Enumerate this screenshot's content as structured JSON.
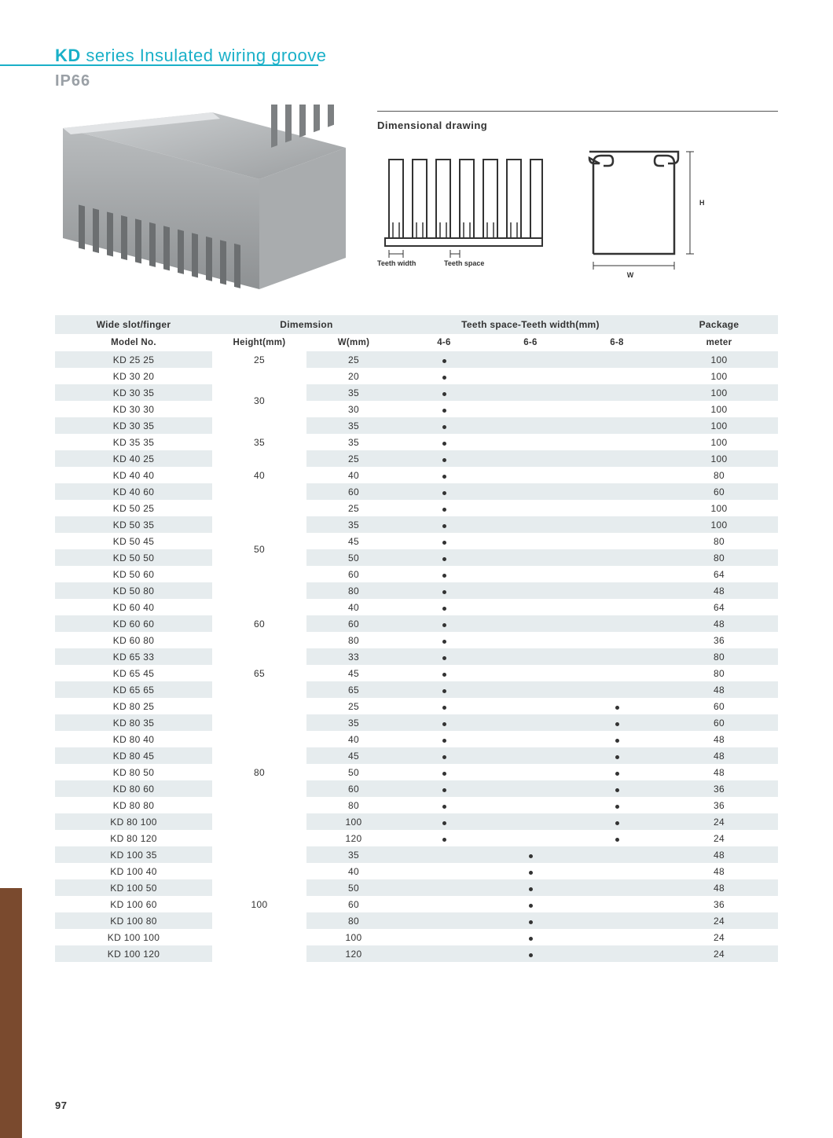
{
  "title": {
    "prefix": "KD",
    "rest": " series Insulated wiring groove"
  },
  "subtitle": "IP66",
  "dim_heading": "Dimensional drawing",
  "dim_labels": {
    "teeth_width": "Teeth width",
    "teeth_space": "Teeth space",
    "w": "W",
    "h": "H"
  },
  "page_number": "97",
  "colors": {
    "accent": "#1ab0c8",
    "row_stripe": "#e6ecee",
    "text": "#333333",
    "side_strip": "#7a4a2e"
  },
  "table": {
    "header1": [
      "Wide slot/finger",
      "Dimemsion",
      "Teeth space-Teeth width(mm)",
      "Package"
    ],
    "header2": [
      "Model No.",
      "Height(mm)",
      "W(mm)",
      "4-6",
      "6-6",
      "6-8",
      "meter"
    ],
    "height_groups": [
      {
        "h": "25",
        "span": 1
      },
      {
        "h": "30",
        "span": 4
      },
      {
        "h": "35",
        "span": 1
      },
      {
        "h": "40",
        "span": 3
      },
      {
        "h": "50",
        "span": 6
      },
      {
        "h": "60",
        "span": 3
      },
      {
        "h": "65",
        "span": 3
      },
      {
        "h": "80",
        "span": 9
      },
      {
        "h": "100",
        "span": 7
      }
    ],
    "rows": [
      {
        "model": "KD 25 25",
        "w": "25",
        "t46": true,
        "t66": false,
        "t68": false,
        "pkg": "100"
      },
      {
        "model": "KD 30 20",
        "w": "20",
        "t46": true,
        "t66": false,
        "t68": false,
        "pkg": "100"
      },
      {
        "model": "KD 30 35",
        "w": "35",
        "t46": true,
        "t66": false,
        "t68": false,
        "pkg": "100"
      },
      {
        "model": "KD 30 30",
        "w": "30",
        "t46": true,
        "t66": false,
        "t68": false,
        "pkg": "100"
      },
      {
        "model": "KD 30 35",
        "w": "35",
        "t46": true,
        "t66": false,
        "t68": false,
        "pkg": "100"
      },
      {
        "model": "KD 35 35",
        "w": "35",
        "t46": true,
        "t66": false,
        "t68": false,
        "pkg": "100"
      },
      {
        "model": "KD 40 25",
        "w": "25",
        "t46": true,
        "t66": false,
        "t68": false,
        "pkg": "100"
      },
      {
        "model": "KD 40 40",
        "w": "40",
        "t46": true,
        "t66": false,
        "t68": false,
        "pkg": "80"
      },
      {
        "model": "KD 40 60",
        "w": "60",
        "t46": true,
        "t66": false,
        "t68": false,
        "pkg": "60"
      },
      {
        "model": "KD 50 25",
        "w": "25",
        "t46": true,
        "t66": false,
        "t68": false,
        "pkg": "100"
      },
      {
        "model": "KD 50 35",
        "w": "35",
        "t46": true,
        "t66": false,
        "t68": false,
        "pkg": "100"
      },
      {
        "model": "KD 50 45",
        "w": "45",
        "t46": true,
        "t66": false,
        "t68": false,
        "pkg": "80"
      },
      {
        "model": "KD 50 50",
        "w": "50",
        "t46": true,
        "t66": false,
        "t68": false,
        "pkg": "80"
      },
      {
        "model": "KD 50 60",
        "w": "60",
        "t46": true,
        "t66": false,
        "t68": false,
        "pkg": "64"
      },
      {
        "model": "KD 50 80",
        "w": "80",
        "t46": true,
        "t66": false,
        "t68": false,
        "pkg": "48"
      },
      {
        "model": "KD 60 40",
        "w": "40",
        "t46": true,
        "t66": false,
        "t68": false,
        "pkg": "64"
      },
      {
        "model": "KD 60 60",
        "w": "60",
        "t46": true,
        "t66": false,
        "t68": false,
        "pkg": "48"
      },
      {
        "model": "KD 60 80",
        "w": "80",
        "t46": true,
        "t66": false,
        "t68": false,
        "pkg": "36"
      },
      {
        "model": "KD 65 33",
        "w": "33",
        "t46": true,
        "t66": false,
        "t68": false,
        "pkg": "80"
      },
      {
        "model": "KD 65 45",
        "w": "45",
        "t46": true,
        "t66": false,
        "t68": false,
        "pkg": "80"
      },
      {
        "model": "KD 65 65",
        "w": "65",
        "t46": true,
        "t66": false,
        "t68": false,
        "pkg": "48"
      },
      {
        "model": "KD 80 25",
        "w": "25",
        "t46": true,
        "t66": false,
        "t68": true,
        "pkg": "60"
      },
      {
        "model": "KD 80 35",
        "w": "35",
        "t46": true,
        "t66": false,
        "t68": true,
        "pkg": "60"
      },
      {
        "model": "KD 80 40",
        "w": "40",
        "t46": true,
        "t66": false,
        "t68": true,
        "pkg": "48"
      },
      {
        "model": "KD 80 45",
        "w": "45",
        "t46": true,
        "t66": false,
        "t68": true,
        "pkg": "48"
      },
      {
        "model": "KD 80 50",
        "w": "50",
        "t46": true,
        "t66": false,
        "t68": true,
        "pkg": "48"
      },
      {
        "model": "KD 80 60",
        "w": "60",
        "t46": true,
        "t66": false,
        "t68": true,
        "pkg": "36"
      },
      {
        "model": "KD 80 80",
        "w": "80",
        "t46": true,
        "t66": false,
        "t68": true,
        "pkg": "36"
      },
      {
        "model": "KD 80 100",
        "w": "100",
        "t46": true,
        "t66": false,
        "t68": true,
        "pkg": "24"
      },
      {
        "model": "KD 80 120",
        "w": "120",
        "t46": true,
        "t66": false,
        "t68": true,
        "pkg": "24"
      },
      {
        "model": "KD 100 35",
        "w": "35",
        "t46": false,
        "t66": true,
        "t68": false,
        "pkg": "48"
      },
      {
        "model": "KD 100 40",
        "w": "40",
        "t46": false,
        "t66": true,
        "t68": false,
        "pkg": "48"
      },
      {
        "model": "KD 100 50",
        "w": "50",
        "t46": false,
        "t66": true,
        "t68": false,
        "pkg": "48"
      },
      {
        "model": "KD 100 60",
        "w": "60",
        "t46": false,
        "t66": true,
        "t68": false,
        "pkg": "36"
      },
      {
        "model": "KD 100 80",
        "w": "80",
        "t46": false,
        "t66": true,
        "t68": false,
        "pkg": "24"
      },
      {
        "model": "KD 100 100",
        "w": "100",
        "t46": false,
        "t66": true,
        "t68": false,
        "pkg": "24"
      },
      {
        "model": "KD 100 120",
        "w": "120",
        "t46": false,
        "t66": true,
        "t68": false,
        "pkg": "24"
      }
    ]
  }
}
